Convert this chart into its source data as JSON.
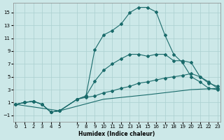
{
  "xlabel": "Humidex (Indice chaleur)",
  "bg_color": "#cce8e8",
  "grid_color": "#aacfcf",
  "line_color": "#1a6b6b",
  "series": {
    "line1_x": [
      0,
      1,
      2,
      3,
      4,
      5,
      7,
      8,
      9,
      10,
      11,
      12,
      13,
      14,
      15,
      16,
      17,
      18,
      19,
      20,
      21,
      22,
      23
    ],
    "line1_y": [
      0.7,
      1.0,
      1.2,
      0.7,
      -0.5,
      -0.3,
      1.5,
      2.0,
      9.2,
      11.5,
      12.2,
      13.2,
      15.0,
      15.8,
      15.8,
      15.1,
      11.5,
      8.5,
      7.2,
      5.0,
      4.2,
      3.2,
      3.0
    ],
    "line2_x": [
      0,
      1,
      2,
      3,
      4,
      5,
      7,
      8,
      9,
      10,
      11,
      12,
      13,
      14,
      15,
      16,
      17,
      18,
      19,
      20,
      21,
      22,
      23
    ],
    "line2_y": [
      0.7,
      1.0,
      1.2,
      0.7,
      -0.5,
      -0.3,
      1.5,
      2.0,
      4.3,
      6.0,
      7.0,
      7.8,
      8.5,
      8.5,
      8.2,
      8.5,
      8.5,
      7.5,
      7.5,
      7.2,
      5.0,
      4.0,
      3.5
    ],
    "line3_x": [
      0,
      1,
      2,
      3,
      4,
      5,
      7,
      8,
      9,
      10,
      11,
      12,
      13,
      14,
      15,
      16,
      17,
      18,
      19,
      20,
      21,
      22,
      23
    ],
    "line3_y": [
      0.7,
      1.0,
      1.2,
      0.7,
      -0.5,
      -0.3,
      1.5,
      1.8,
      2.0,
      2.5,
      2.8,
      3.2,
      3.5,
      4.0,
      4.2,
      4.5,
      4.8,
      5.0,
      5.2,
      5.5,
      5.0,
      4.2,
      3.2
    ],
    "line4_x": [
      0,
      5,
      10,
      15,
      20,
      23
    ],
    "line4_y": [
      0.7,
      -0.3,
      1.5,
      2.2,
      3.0,
      3.2
    ]
  },
  "xlim": [
    -0.3,
    23.3
  ],
  "ylim": [
    -2.0,
    16.5
  ],
  "yticks": [
    -1,
    1,
    3,
    5,
    7,
    9,
    11,
    13,
    15
  ],
  "xticks": [
    0,
    1,
    2,
    3,
    4,
    5,
    7,
    8,
    9,
    10,
    11,
    12,
    13,
    14,
    15,
    16,
    17,
    18,
    19,
    20,
    21,
    22,
    23
  ]
}
